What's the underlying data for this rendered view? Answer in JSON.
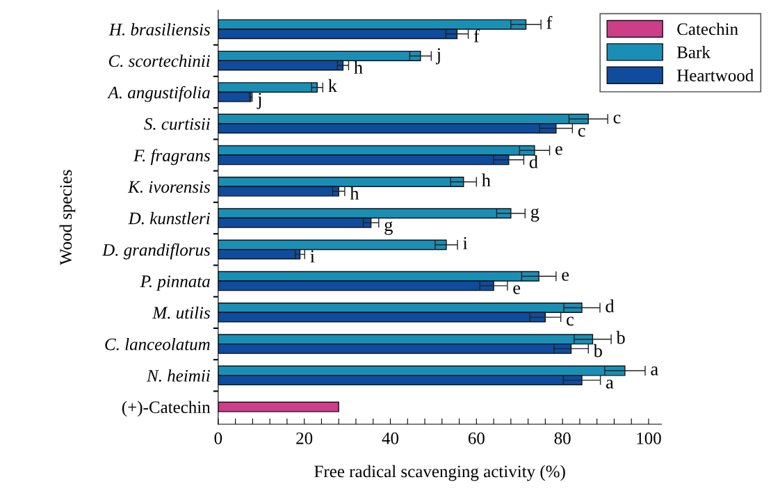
{
  "chart_data": {
    "type": "bar",
    "orientation": "horizontal",
    "xlabel": "Free radical scavenging activity (%)",
    "ylabel": "Wood species",
    "categories": [
      "H. brasiliensis",
      "C. scortechinii",
      "A. angustifolia",
      "S. curtisii",
      "F. fragrans",
      "K. ivorensis",
      "D. kunstleri",
      "D. grandiflorus",
      "P. pinnata",
      "M. utilis",
      "C. lanceolatum",
      "N. heimii",
      "(+)-Catechin"
    ],
    "series": [
      {
        "name": "Catechin",
        "color": "#cc3d8a",
        "values": [
          null,
          null,
          null,
          null,
          null,
          null,
          null,
          null,
          null,
          null,
          null,
          null,
          28
        ]
      },
      {
        "name": "Bark",
        "color": "#1a8fb6",
        "values": [
          71.5,
          47,
          23,
          86,
          73.5,
          57,
          68,
          53,
          74.5,
          84.5,
          87,
          94.5,
          null
        ],
        "errors": [
          3.5,
          2.5,
          1.3,
          4.5,
          3.5,
          3,
          3.3,
          2.6,
          4,
          4.2,
          4.3,
          4.7,
          null
        ],
        "value_labels": [
          "f",
          "j",
          "k",
          "c",
          "e",
          "h",
          "g",
          "i",
          "e",
          "d",
          "b",
          "a",
          null
        ]
      },
      {
        "name": "Heartwood",
        "color": "#0f4c9e",
        "values": [
          55.5,
          29,
          7.6,
          78.5,
          67.5,
          28,
          35.5,
          19,
          64,
          76,
          82,
          84.5,
          null
        ],
        "errors": [
          2.6,
          1.3,
          0.3,
          3.8,
          3.5,
          1.4,
          1.8,
          1.1,
          3.2,
          3.6,
          4,
          4.3,
          null
        ],
        "value_labels": [
          "f",
          "h",
          "j",
          "c",
          "d",
          "h",
          "g",
          "i",
          "e",
          "c",
          "b",
          "a",
          null
        ]
      }
    ],
    "xlim": [
      0,
      103
    ],
    "xticks": [
      0,
      {
        "value": 4,
        "label": null
      },
      {
        "value": 8,
        "label": null
      },
      {
        "value": 12,
        "label": null
      },
      {
        "value": 16,
        "label": null
      },
      20,
      {
        "value": 24,
        "label": null
      },
      {
        "value": 28,
        "label": null
      },
      {
        "value": 32,
        "label": null
      },
      {
        "value": 36,
        "label": null
      },
      40,
      {
        "value": 44,
        "label": null
      },
      {
        "value": 48,
        "label": null
      },
      {
        "value": 52,
        "label": null
      },
      {
        "value": 56,
        "label": null
      },
      60,
      {
        "value": 64,
        "label": null
      },
      {
        "value": 68,
        "label": null
      },
      {
        "value": 72,
        "label": null
      },
      {
        "value": 76,
        "label": null
      },
      80,
      {
        "value": 84,
        "label": null
      },
      {
        "value": 88,
        "label": null
      },
      {
        "value": 92,
        "label": null
      },
      {
        "value": 96,
        "label": null
      },
      100
    ],
    "grid": false,
    "legend": "top right"
  }
}
